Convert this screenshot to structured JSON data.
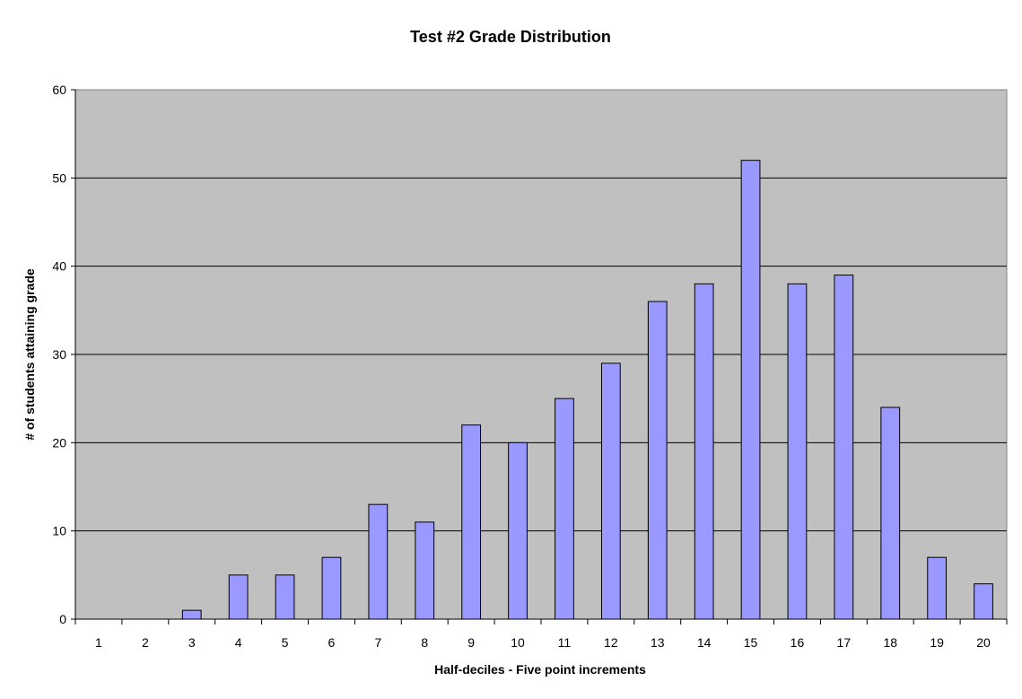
{
  "chart_data": {
    "type": "bar",
    "title": "Test #2 Grade Distribution",
    "xlabel": "Half-deciles - Five point increments",
    "ylabel": "# of students attaining grade",
    "categories": [
      "1",
      "2",
      "3",
      "4",
      "5",
      "6",
      "7",
      "8",
      "9",
      "10",
      "11",
      "12",
      "13",
      "14",
      "15",
      "16",
      "17",
      "18",
      "19",
      "20"
    ],
    "values": [
      0,
      0,
      1,
      5,
      5,
      7,
      13,
      11,
      22,
      20,
      25,
      29,
      36,
      38,
      52,
      38,
      39,
      24,
      7,
      4
    ],
    "ylim": [
      0,
      60
    ],
    "yticks": [
      0,
      10,
      20,
      30,
      40,
      50,
      60
    ],
    "grid": true,
    "legend": "none",
    "colors": {
      "bar_fill": "#9999ff",
      "bar_stroke": "#000000",
      "plot_background": "#c0c0c0",
      "gridline": "#000000"
    }
  }
}
